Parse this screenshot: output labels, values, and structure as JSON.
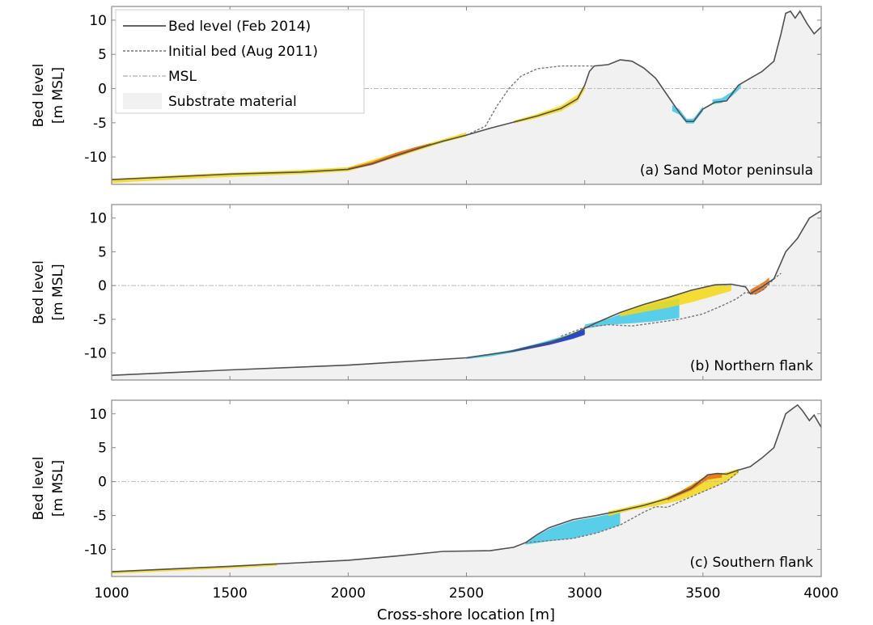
{
  "chart_data": {
    "type": "line",
    "xlabel": "Cross-shore location [m]",
    "xlim": [
      1000,
      4000
    ],
    "xticks": [
      1000,
      1500,
      2000,
      2500,
      3000,
      3500,
      4000
    ],
    "ylim": [
      -14,
      12
    ],
    "yticks": [
      10,
      5,
      0,
      -5,
      -10
    ],
    "ylabel_lines": [
      "Bed level",
      "[m MSL]"
    ],
    "legend": [
      {
        "key": "bed",
        "label": "Bed level (Feb 2014)",
        "style": "solid",
        "color": "#505050"
      },
      {
        "key": "init",
        "label": "Initial bed (Aug 2011)",
        "style": "dashed",
        "color": "#777777"
      },
      {
        "key": "msl",
        "label": "MSL",
        "style": "dashdot",
        "color": "#bbbbbb"
      },
      {
        "key": "sub",
        "label": "Substrate material",
        "style": "patch",
        "color": "#f1f1f1"
      }
    ],
    "colors": {
      "erosion_dark": "#1a2fc8",
      "erosion": "#3ec8e8",
      "accretion": "#f4d816",
      "accretion_strong": "#e86a10"
    },
    "panels": [
      {
        "annotation": "(a) Sand Motor peninsula",
        "bed": [
          [
            1000,
            -13.3
          ],
          [
            1200,
            -13
          ],
          [
            1500,
            -12.5
          ],
          [
            1800,
            -12.2
          ],
          [
            2000,
            -11.8
          ],
          [
            2100,
            -11
          ],
          [
            2200,
            -9.8
          ],
          [
            2300,
            -8.7
          ],
          [
            2400,
            -7.7
          ],
          [
            2500,
            -6.8
          ],
          [
            2600,
            -5.8
          ],
          [
            2700,
            -4.9
          ],
          [
            2800,
            -4
          ],
          [
            2900,
            -2.9
          ],
          [
            2970,
            -1.5
          ],
          [
            3000,
            0.5
          ],
          [
            3020,
            2.5
          ],
          [
            3040,
            3.3
          ],
          [
            3100,
            3.5
          ],
          [
            3150,
            4.2
          ],
          [
            3200,
            4
          ],
          [
            3250,
            3
          ],
          [
            3300,
            1.5
          ],
          [
            3350,
            -1
          ],
          [
            3400,
            -3.5
          ],
          [
            3430,
            -4.8
          ],
          [
            3460,
            -4.8
          ],
          [
            3500,
            -3
          ],
          [
            3550,
            -2
          ],
          [
            3600,
            -1.8
          ],
          [
            3650,
            0.5
          ],
          [
            3700,
            1.5
          ],
          [
            3750,
            2.5
          ],
          [
            3800,
            4
          ],
          [
            3830,
            8
          ],
          [
            3850,
            11
          ],
          [
            3870,
            11.3
          ],
          [
            3890,
            10.3
          ],
          [
            3910,
            11.3
          ],
          [
            3940,
            9.5
          ],
          [
            3970,
            8
          ],
          [
            4000,
            9
          ]
        ],
        "initial": [
          [
            2500,
            -6.8
          ],
          [
            2580,
            -5.5
          ],
          [
            2630,
            -2.5
          ],
          [
            2680,
            0
          ],
          [
            2730,
            1.8
          ],
          [
            2800,
            2.9
          ],
          [
            2900,
            3.3
          ],
          [
            3000,
            3.3
          ],
          [
            3040,
            3.3
          ]
        ],
        "bands": [
          {
            "color": "#f4d816",
            "x": [
              1000,
              1200,
              1500,
              1800,
              2000,
              2200,
              2400,
              2500
            ],
            "ybot": [
              -13.8,
              -13.4,
              -12.9,
              -12.5,
              -12.1,
              -10.1,
              -7.9,
              -7
            ],
            "ytop": [
              -13.2,
              -12.8,
              -12.3,
              -11.9,
              -11.5,
              -9.4,
              -7.4,
              -6.4
            ]
          },
          {
            "color": "#e86a10",
            "x": [
              2000,
              2100,
              2200,
              2280,
              2350
            ],
            "ybot": [
              -11.9,
              -11.2,
              -10,
              -9.1,
              -8.3
            ],
            "ytop": [
              -11.6,
              -10.7,
              -9.4,
              -8.6,
              -8
            ]
          },
          {
            "color": "#f4d816",
            "x": [
              2700,
              2800,
              2900,
              2970,
              3000
            ],
            "ybot": [
              -5.1,
              -4.3,
              -3.3,
              -1.9,
              -0.2
            ],
            "ytop": [
              -4.7,
              -3.7,
              -2.5,
              -0.9,
              0.6
            ]
          },
          {
            "color": "#3ec8e8",
            "x": [
              3370,
              3400,
              3430,
              3460,
              3500
            ],
            "ybot": [
              -3.3,
              -3.8,
              -5.1,
              -5.1,
              -3.3
            ],
            "ytop": [
              -2.4,
              -3,
              -4.4,
              -4.4,
              -2.6
            ]
          },
          {
            "color": "#3ec8e8",
            "x": [
              3540,
              3580,
              3620,
              3660
            ],
            "ybot": [
              -2.3,
              -2.1,
              -1.2,
              0.1
            ],
            "ytop": [
              -1.6,
              -1.4,
              -0.5,
              0.8
            ]
          }
        ]
      },
      {
        "annotation": "(b) Northern flank",
        "bed": [
          [
            1000,
            -13.3
          ],
          [
            1500,
            -12.5
          ],
          [
            2000,
            -11.8
          ],
          [
            2500,
            -10.7
          ],
          [
            2700,
            -9.7
          ],
          [
            2850,
            -8.5
          ],
          [
            2950,
            -7.2
          ],
          [
            3050,
            -5.5
          ],
          [
            3150,
            -4
          ],
          [
            3250,
            -2.8
          ],
          [
            3350,
            -1.8
          ],
          [
            3450,
            -0.7
          ],
          [
            3550,
            0.1
          ],
          [
            3620,
            0.2
          ],
          [
            3680,
            -0.2
          ],
          [
            3700,
            -1.2
          ],
          [
            3750,
            -0.2
          ],
          [
            3800,
            1
          ],
          [
            3850,
            5
          ],
          [
            3900,
            7
          ],
          [
            3950,
            10
          ],
          [
            4000,
            11.1
          ]
        ],
        "initial": [
          [
            2900,
            -7.5
          ],
          [
            3000,
            -6.2
          ],
          [
            3100,
            -5.8
          ],
          [
            3200,
            -6
          ],
          [
            3300,
            -5.5
          ],
          [
            3400,
            -5
          ],
          [
            3500,
            -4.2
          ],
          [
            3580,
            -3
          ],
          [
            3640,
            -2
          ],
          [
            3680,
            -1
          ],
          [
            3720,
            -1.3
          ],
          [
            3760,
            -0.5
          ],
          [
            3800,
            1
          ],
          [
            3830,
            1.8
          ]
        ],
        "bands": [
          {
            "color": "#3ec8e8",
            "x": [
              2500,
              2600,
              2700,
              2800,
              2900,
              3000
            ],
            "ybot": [
              -10.9,
              -10.5,
              -9.9,
              -9.1,
              -8.2,
              -7.2
            ],
            "ytop": [
              -10.6,
              -10.1,
              -9.5,
              -8.6,
              -7.6,
              -6.4
            ]
          },
          {
            "color": "#1a2fc8",
            "x": [
              2680,
              2750,
              2850,
              2950,
              3000
            ],
            "ybot": [
              -9.9,
              -9.5,
              -8.8,
              -7.9,
              -7.3
            ],
            "ytop": [
              -9.7,
              -9.1,
              -8.3,
              -7.2,
              -6.5
            ]
          },
          {
            "color": "#3ec8e8",
            "x": [
              3000,
              3100,
              3200,
              3300,
              3400
            ],
            "ybot": [
              -6.4,
              -5.8,
              -5.6,
              -5.3,
              -4.8
            ],
            "ytop": [
              -5.8,
              -4.9,
              -3.6,
              -2.6,
              -1.9
            ]
          },
          {
            "color": "#f4d816",
            "x": [
              3150,
              3250,
              3350,
              3450,
              3550,
              3620
            ],
            "ybot": [
              -4.6,
              -3.9,
              -3.3,
              -2.5,
              -1.5,
              -0.8
            ],
            "ytop": [
              -4,
              -2.8,
              -1.8,
              -0.8,
              0,
              0.2
            ]
          },
          {
            "color": "#e86a10",
            "x": [
              3700,
              3730,
              3760,
              3780
            ],
            "ybot": [
              -1.4,
              -1.2,
              -0.6,
              0.2
            ],
            "ytop": [
              -0.6,
              0,
              0.6,
              1.2
            ]
          }
        ]
      },
      {
        "annotation": "(c) Southern flank",
        "bed": [
          [
            1000,
            -13.3
          ],
          [
            1500,
            -12.5
          ],
          [
            2000,
            -11.6
          ],
          [
            2200,
            -11
          ],
          [
            2400,
            -10.3
          ],
          [
            2600,
            -10.2
          ],
          [
            2700,
            -9.7
          ],
          [
            2750,
            -9
          ],
          [
            2800,
            -7.8
          ],
          [
            2850,
            -6.8
          ],
          [
            2950,
            -5.6
          ],
          [
            3050,
            -5
          ],
          [
            3150,
            -4.3
          ],
          [
            3250,
            -3.5
          ],
          [
            3350,
            -2.5
          ],
          [
            3450,
            -1
          ],
          [
            3520,
            1
          ],
          [
            3560,
            1.2
          ],
          [
            3600,
            1.1
          ],
          [
            3650,
            1.7
          ],
          [
            3700,
            2.2
          ],
          [
            3750,
            3.5
          ],
          [
            3800,
            5
          ],
          [
            3820,
            7
          ],
          [
            3850,
            10
          ],
          [
            3880,
            10.8
          ],
          [
            3900,
            11.3
          ],
          [
            3920,
            10.5
          ],
          [
            3950,
            9
          ],
          [
            3970,
            9.8
          ],
          [
            4000,
            8
          ]
        ],
        "initial": [
          [
            2750,
            -9
          ],
          [
            2850,
            -8.7
          ],
          [
            2950,
            -8.4
          ],
          [
            3050,
            -7.6
          ],
          [
            3150,
            -6.4
          ],
          [
            3250,
            -4.5
          ],
          [
            3300,
            -3.7
          ],
          [
            3350,
            -3.8
          ],
          [
            3400,
            -3
          ],
          [
            3500,
            -1.5
          ],
          [
            3600,
            0
          ],
          [
            3650,
            1.5
          ]
        ],
        "bands": [
          {
            "color": "#f4d816",
            "x": [
              1000,
              1500,
              1700
            ],
            "ybot": [
              -13.6,
              -12.8,
              -12.4
            ],
            "ytop": [
              -13.2,
              -12.4,
              -12
            ]
          },
          {
            "color": "#3ec8e8",
            "x": [
              2750,
              2850,
              2950,
              3050,
              3150
            ],
            "ybot": [
              -9.3,
              -8.8,
              -8.4,
              -7.6,
              -6.4
            ],
            "ytop": [
              -8.9,
              -7,
              -5.8,
              -5.2,
              -4.5
            ]
          },
          {
            "color": "#f4d816",
            "x": [
              3100,
              3200,
              3300,
              3400,
              3500,
              3600,
              3650
            ],
            "ybot": [
              -5.1,
              -4.2,
              -3.6,
              -2.8,
              -1.5,
              0,
              1.2
            ],
            "ytop": [
              -4.4,
              -3.6,
              -2.8,
              -1.5,
              0.6,
              1.4,
              1.9
            ]
          },
          {
            "color": "#e86a10",
            "x": [
              3350,
              3450,
              3520,
              3580
            ],
            "ybot": [
              -2.8,
              -1.3,
              0.3,
              0.6
            ],
            "ytop": [
              -2.4,
              -0.6,
              1,
              1.3
            ]
          }
        ]
      }
    ]
  }
}
